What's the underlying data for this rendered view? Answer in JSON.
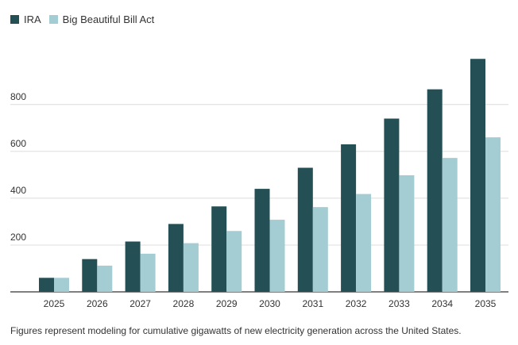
{
  "chart_data": {
    "type": "bar",
    "title": "",
    "xlabel": "",
    "ylabel": "",
    "categories": [
      "2025",
      "2026",
      "2027",
      "2028",
      "2029",
      "2030",
      "2031",
      "2032",
      "2033",
      "2034",
      "2035"
    ],
    "series": [
      {
        "name": "IRA",
        "color": "#234f55",
        "values": [
          60,
          140,
          215,
          290,
          365,
          440,
          530,
          630,
          740,
          865,
          995
        ]
      },
      {
        "name": "Big Beautiful Bill Act",
        "color": "#a3cdd3",
        "values": [
          60,
          112,
          163,
          208,
          260,
          308,
          362,
          418,
          498,
          572,
          660
        ]
      }
    ],
    "ylim": [
      0,
      1050
    ],
    "yticks": [
      200,
      400,
      600,
      800
    ],
    "grid": true,
    "legend": "top-left"
  },
  "caption": "Figures represent modeling for cumulative gigawatts of new electricity generation across the United States."
}
